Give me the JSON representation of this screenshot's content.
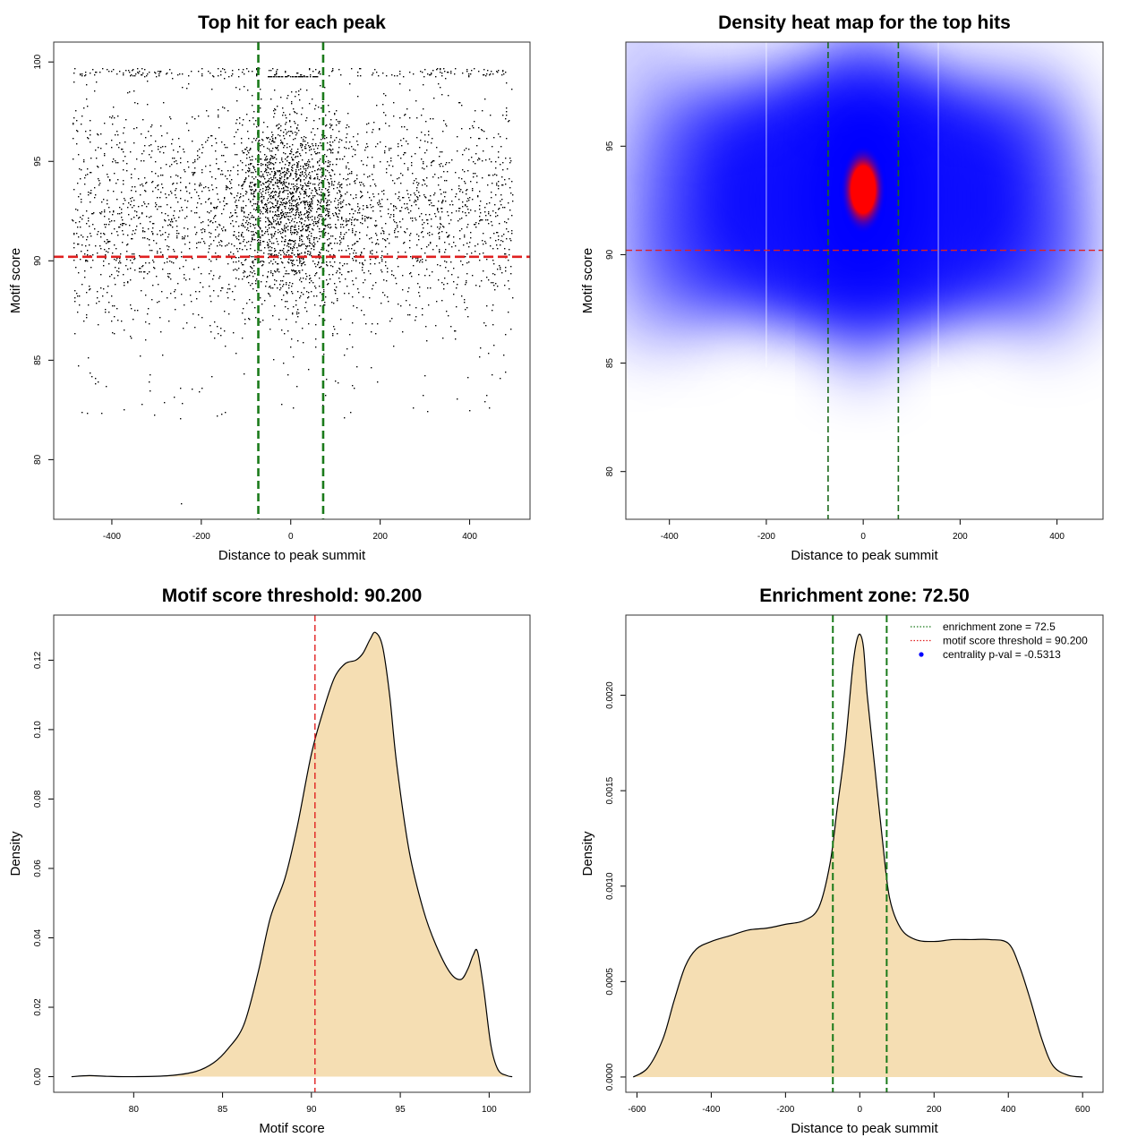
{
  "chart_data": [
    {
      "id": "scatter",
      "type": "scatter",
      "title": "Top hit for each peak",
      "xlabel": "Distance to peak summit",
      "ylabel": "Motif score",
      "xlim": [
        -530,
        535
      ],
      "ylim": [
        77,
        101
      ],
      "xticks": [
        "-400",
        "-200",
        "0",
        "200",
        "400"
      ],
      "xtick_values": [
        -400,
        -200,
        0,
        200,
        400
      ],
      "yticks": [
        "80",
        "85",
        "90",
        "95",
        "100"
      ],
      "ytick_values": [
        80,
        85,
        90,
        95,
        100
      ],
      "vlines": [
        -72.5,
        72.5
      ],
      "hlines": [
        90.2
      ],
      "point_cloud": {
        "x_range": [
          -490,
          495
        ],
        "central_concentration_x_sd": 65,
        "score_mode": 93,
        "score_max": 99.7,
        "score_min": 77.8
      },
      "colors": {
        "points": "#000000",
        "vlines": "#1a7a1a",
        "hlines": "#e02020"
      }
    },
    {
      "id": "heatmap",
      "type": "heatmap",
      "title": "Density heat map for the top hits",
      "xlabel": "Distance to peak summit",
      "ylabel": "Motif score",
      "xlim": [
        -490,
        495
      ],
      "ylim": [
        77.8,
        99.8
      ],
      "xticks": [
        "-400",
        "-200",
        "0",
        "200",
        "400"
      ],
      "xtick_values": [
        -400,
        -200,
        0,
        200,
        400
      ],
      "yticks": [
        "80",
        "85",
        "90",
        "95"
      ],
      "ytick_values": [
        80,
        85,
        90,
        95
      ],
      "vlines": [
        -72.5,
        72.5
      ],
      "hlines": [
        90.2
      ],
      "peak": {
        "x": 0,
        "y": 93
      },
      "colormap": [
        "#ffffff",
        "#0000ff",
        "#ff0000"
      ],
      "colors": {
        "vlines": "#1a6a1a",
        "hlines": "#e02020"
      }
    },
    {
      "id": "score_density",
      "type": "area",
      "title": "Motif score threshold: 90.200",
      "xlabel": "Motif score",
      "ylabel": "Density",
      "xlim": [
        75.5,
        102.3
      ],
      "ylim": [
        -0.0045,
        0.133
      ],
      "xticks": [
        "80",
        "85",
        "90",
        "95",
        "100"
      ],
      "xtick_values": [
        80,
        85,
        90,
        95,
        100
      ],
      "yticks": [
        "0.00",
        "0.02",
        "0.04",
        "0.06",
        "0.08",
        "0.10",
        "0.12"
      ],
      "ytick_values": [
        0,
        0.02,
        0.04,
        0.06,
        0.08,
        0.1,
        0.12
      ],
      "x": [
        76.5,
        77.5,
        78.5,
        80,
        82,
        83.5,
        84.5,
        85.3,
        86.2,
        87,
        87.7,
        88.5,
        89.2,
        90,
        90.7,
        91.3,
        91.9,
        92.5,
        92.9,
        93.3,
        93.6,
        94,
        94.4,
        94.8,
        95.5,
        96.3,
        97,
        97.8,
        98.4,
        98.8,
        99.1,
        99.35,
        99.7,
        100.1,
        100.5,
        101,
        101.3
      ],
      "values": [
        0,
        0.0003,
        0.0001,
        0,
        0.0003,
        0.0015,
        0.004,
        0.008,
        0.015,
        0.03,
        0.046,
        0.057,
        0.072,
        0.093,
        0.106,
        0.115,
        0.119,
        0.12,
        0.122,
        0.126,
        0.128,
        0.124,
        0.11,
        0.09,
        0.065,
        0.048,
        0.038,
        0.03,
        0.028,
        0.031,
        0.035,
        0.036,
        0.025,
        0.009,
        0.002,
        0.0003,
        0
      ],
      "vlines": [
        90.2
      ],
      "colors": {
        "fill": "#f5deb3",
        "vlines": "#e02020"
      }
    },
    {
      "id": "distance_density",
      "type": "area",
      "title": "Enrichment zone: 72.50",
      "xlabel": "Distance to peak summit",
      "ylabel": "Density",
      "xlim": [
        -630,
        655
      ],
      "ylim": [
        -8e-05,
        0.00242
      ],
      "xticks": [
        "-600",
        "-400",
        "-200",
        "0",
        "200",
        "400",
        "600"
      ],
      "xtick_values": [
        -600,
        -400,
        -200,
        0,
        200,
        400,
        600
      ],
      "yticks": [
        "0.0000",
        "0.0005",
        "0.0010",
        "0.0015",
        "0.0020"
      ],
      "ytick_values": [
        0,
        0.0005,
        0.001,
        0.0015,
        0.002
      ],
      "x": [
        -610,
        -570,
        -530,
        -500,
        -470,
        -440,
        -400,
        -350,
        -300,
        -250,
        -200,
        -150,
        -110,
        -80,
        -60,
        -40,
        -20,
        -10,
        0,
        10,
        20,
        40,
        60,
        80,
        110,
        150,
        200,
        250,
        300,
        350,
        400,
        430,
        460,
        490,
        520,
        560,
        600
      ],
      "values": [
        0,
        5e-05,
        0.0002,
        0.0004,
        0.00058,
        0.00067,
        0.00071,
        0.00074,
        0.00077,
        0.00078,
        0.0008,
        0.00082,
        0.00089,
        0.00112,
        0.00142,
        0.00172,
        0.00213,
        0.00227,
        0.00232,
        0.00225,
        0.002,
        0.00163,
        0.00126,
        0.00094,
        0.00078,
        0.00072,
        0.00071,
        0.00072,
        0.00072,
        0.00072,
        0.0007,
        0.00058,
        0.0004,
        0.0002,
        6e-05,
        1e-05,
        0
      ],
      "vlines": [
        -72.5,
        72.5
      ],
      "legend": {
        "placement": "top-right",
        "entries": [
          {
            "label": "enrichment zone = 72.5",
            "style": "dotted-line",
            "color": "#1a7a1a"
          },
          {
            "label": "motif score threshold = 90.200",
            "style": "dotted-line",
            "color": "#e02020"
          },
          {
            "label": "centrality p-val = -0.5313",
            "style": "point",
            "color": "#0000ff"
          }
        ]
      },
      "colors": {
        "fill": "#f5deb3",
        "vlines": "#1a7a1a"
      }
    }
  ]
}
